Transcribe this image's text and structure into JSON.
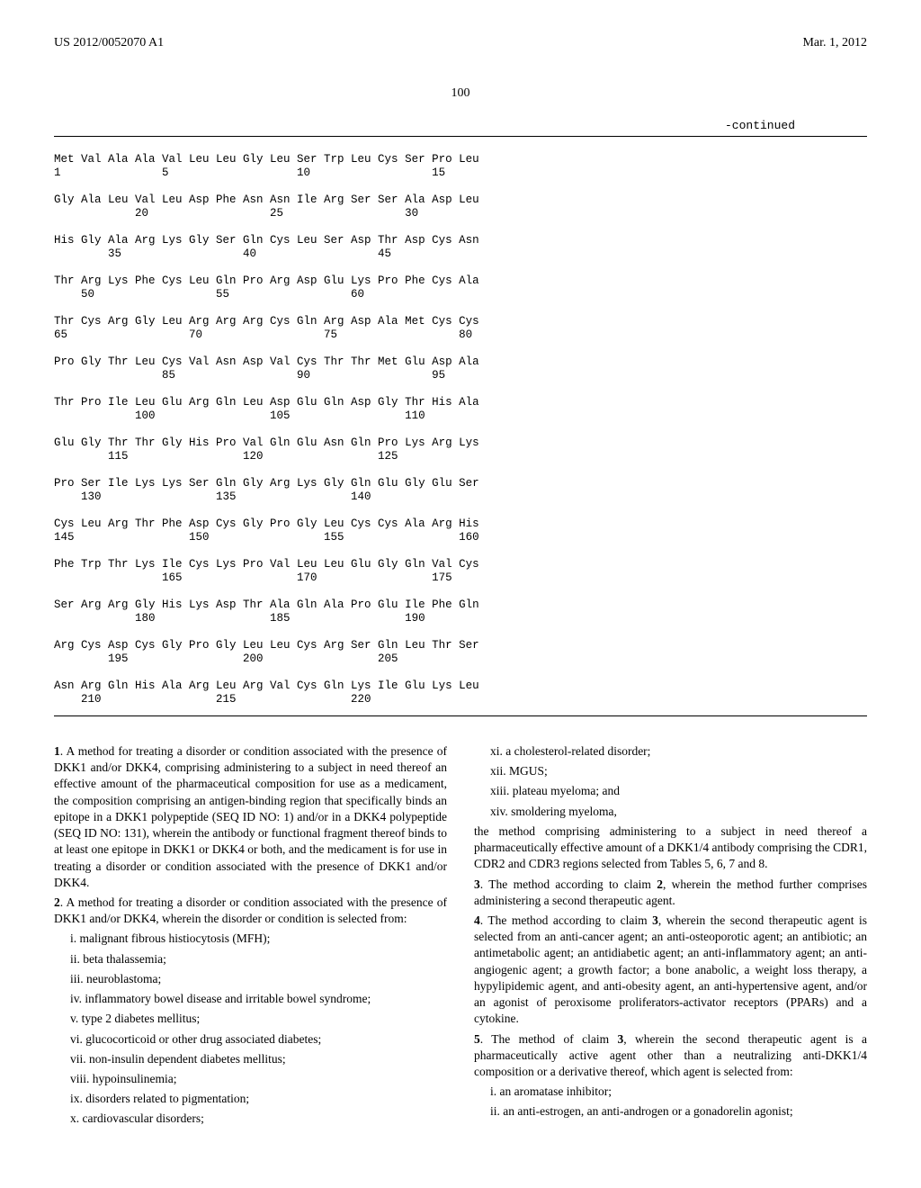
{
  "header": {
    "pub_number": "US 2012/0052070 A1",
    "date": "Mar. 1, 2012"
  },
  "page_number": "100",
  "continued_label": "-continued",
  "sequence": {
    "lines": [
      "Met Val Ala Ala Val Leu Leu Gly Leu Ser Trp Leu Cys Ser Pro Leu",
      "1               5                   10                  15",
      "",
      "Gly Ala Leu Val Leu Asp Phe Asn Asn Ile Arg Ser Ser Ala Asp Leu",
      "            20                  25                  30",
      "",
      "His Gly Ala Arg Lys Gly Ser Gln Cys Leu Ser Asp Thr Asp Cys Asn",
      "        35                  40                  45",
      "",
      "Thr Arg Lys Phe Cys Leu Gln Pro Arg Asp Glu Lys Pro Phe Cys Ala",
      "    50                  55                  60",
      "",
      "Thr Cys Arg Gly Leu Arg Arg Arg Cys Gln Arg Asp Ala Met Cys Cys",
      "65                  70                  75                  80",
      "",
      "Pro Gly Thr Leu Cys Val Asn Asp Val Cys Thr Thr Met Glu Asp Ala",
      "                85                  90                  95",
      "",
      "Thr Pro Ile Leu Glu Arg Gln Leu Asp Glu Gln Asp Gly Thr His Ala",
      "            100                 105                 110",
      "",
      "Glu Gly Thr Thr Gly His Pro Val Gln Glu Asn Gln Pro Lys Arg Lys",
      "        115                 120                 125",
      "",
      "Pro Ser Ile Lys Lys Ser Gln Gly Arg Lys Gly Gln Glu Gly Glu Ser",
      "    130                 135                 140",
      "",
      "Cys Leu Arg Thr Phe Asp Cys Gly Pro Gly Leu Cys Cys Ala Arg His",
      "145                 150                 155                 160",
      "",
      "Phe Trp Thr Lys Ile Cys Lys Pro Val Leu Leu Glu Gly Gln Val Cys",
      "                165                 170                 175",
      "",
      "Ser Arg Arg Gly His Lys Asp Thr Ala Gln Ala Pro Glu Ile Phe Gln",
      "            180                 185                 190",
      "",
      "Arg Cys Asp Cys Gly Pro Gly Leu Leu Cys Arg Ser Gln Leu Thr Ser",
      "        195                 200                 205",
      "",
      "Asn Arg Gln His Ala Arg Leu Arg Val Cys Gln Lys Ile Glu Lys Leu",
      "    210                 215                 220"
    ]
  },
  "claims_left": [
    {
      "cls": "indent0",
      "text": "<b>1</b>. A method for treating a disorder or condition associated with the presence of DKK1 and/or DKK4, comprising administering to a subject in need thereof an effective amount of the pharmaceutical composition for use as a medicament, the composition comprising an antigen-binding region that specifically binds an epitope in a DKK1 polypeptide (SEQ ID NO: 1) and/or in a DKK4 polypeptide (SEQ ID NO: 131), wherein the antibody or functional fragment thereof binds to at least one epitope in DKK1 or DKK4 or both, and the medicament is for use in treating a disorder or condition associated with the presence of DKK1 and/or DKK4."
    },
    {
      "cls": "indent0",
      "text": "<b>2</b>. A method for treating a disorder or condition associated with the presence of DKK1 and/or DKK4, wherein the disorder or condition is selected from:"
    },
    {
      "cls": "indent1",
      "text": "i. malignant fibrous histiocytosis (MFH);"
    },
    {
      "cls": "indent1",
      "text": "ii. beta thalassemia;"
    },
    {
      "cls": "indent1",
      "text": "iii. neuroblastoma;"
    },
    {
      "cls": "indent1",
      "text": "iv. inflammatory bowel disease and irritable bowel syndrome;"
    },
    {
      "cls": "indent1",
      "text": "v. type 2 diabetes mellitus;"
    },
    {
      "cls": "indent1",
      "text": "vi. glucocorticoid or other drug associated diabetes;"
    },
    {
      "cls": "indent1",
      "text": "vii. non-insulin dependent diabetes mellitus;"
    },
    {
      "cls": "indent1",
      "text": "viii. hypoinsulinemia;"
    },
    {
      "cls": "indent1",
      "text": "ix. disorders related to pigmentation;"
    },
    {
      "cls": "indent1",
      "text": "x. cardiovascular disorders;"
    }
  ],
  "claims_right": [
    {
      "cls": "indent1",
      "text": "xi. a cholesterol-related disorder;"
    },
    {
      "cls": "indent1",
      "text": "xii. MGUS;"
    },
    {
      "cls": "indent1",
      "text": "xiii. plateau myeloma; and"
    },
    {
      "cls": "indent1",
      "text": "xiv. smoldering myeloma,"
    },
    {
      "cls": "indent0",
      "text": "the method comprising administering to a subject in need thereof a pharmaceutically effective amount of a DKK1/4 antibody comprising the CDR1, CDR2 and CDR3 regions selected from Tables 5, 6, 7 and 8."
    },
    {
      "cls": "indent0",
      "text": "<b>3</b>. The method according to claim <b>2</b>, wherein the method further comprises administering a second therapeutic agent."
    },
    {
      "cls": "indent0",
      "text": "<b>4</b>. The method according to claim <b>3</b>, wherein the second therapeutic agent is selected from an anti-cancer agent; an anti-osteoporotic agent; an antibiotic; an antimetabolic agent; an antidiabetic agent; an anti-inflammatory agent; an anti-angiogenic agent; a growth factor; a bone anabolic, a weight loss therapy, a hypylipidemic agent, and anti-obesity agent, an anti-hypertensive agent, and/or an agonist of peroxisome proliferators-activator receptors (PPARs) and a cytokine."
    },
    {
      "cls": "indent0",
      "text": "<b>5</b>. The method of claim <b>3</b>, wherein the second therapeutic agent is a pharmaceutically active agent other than a neutralizing anti-DKK1/4 composition or a derivative thereof, which agent is selected from:"
    },
    {
      "cls": "indent1",
      "text": "i. an aromatase inhibitor;"
    },
    {
      "cls": "indent1",
      "text": "ii. an anti-estrogen, an anti-androgen or a gonadorelin agonist;"
    }
  ]
}
